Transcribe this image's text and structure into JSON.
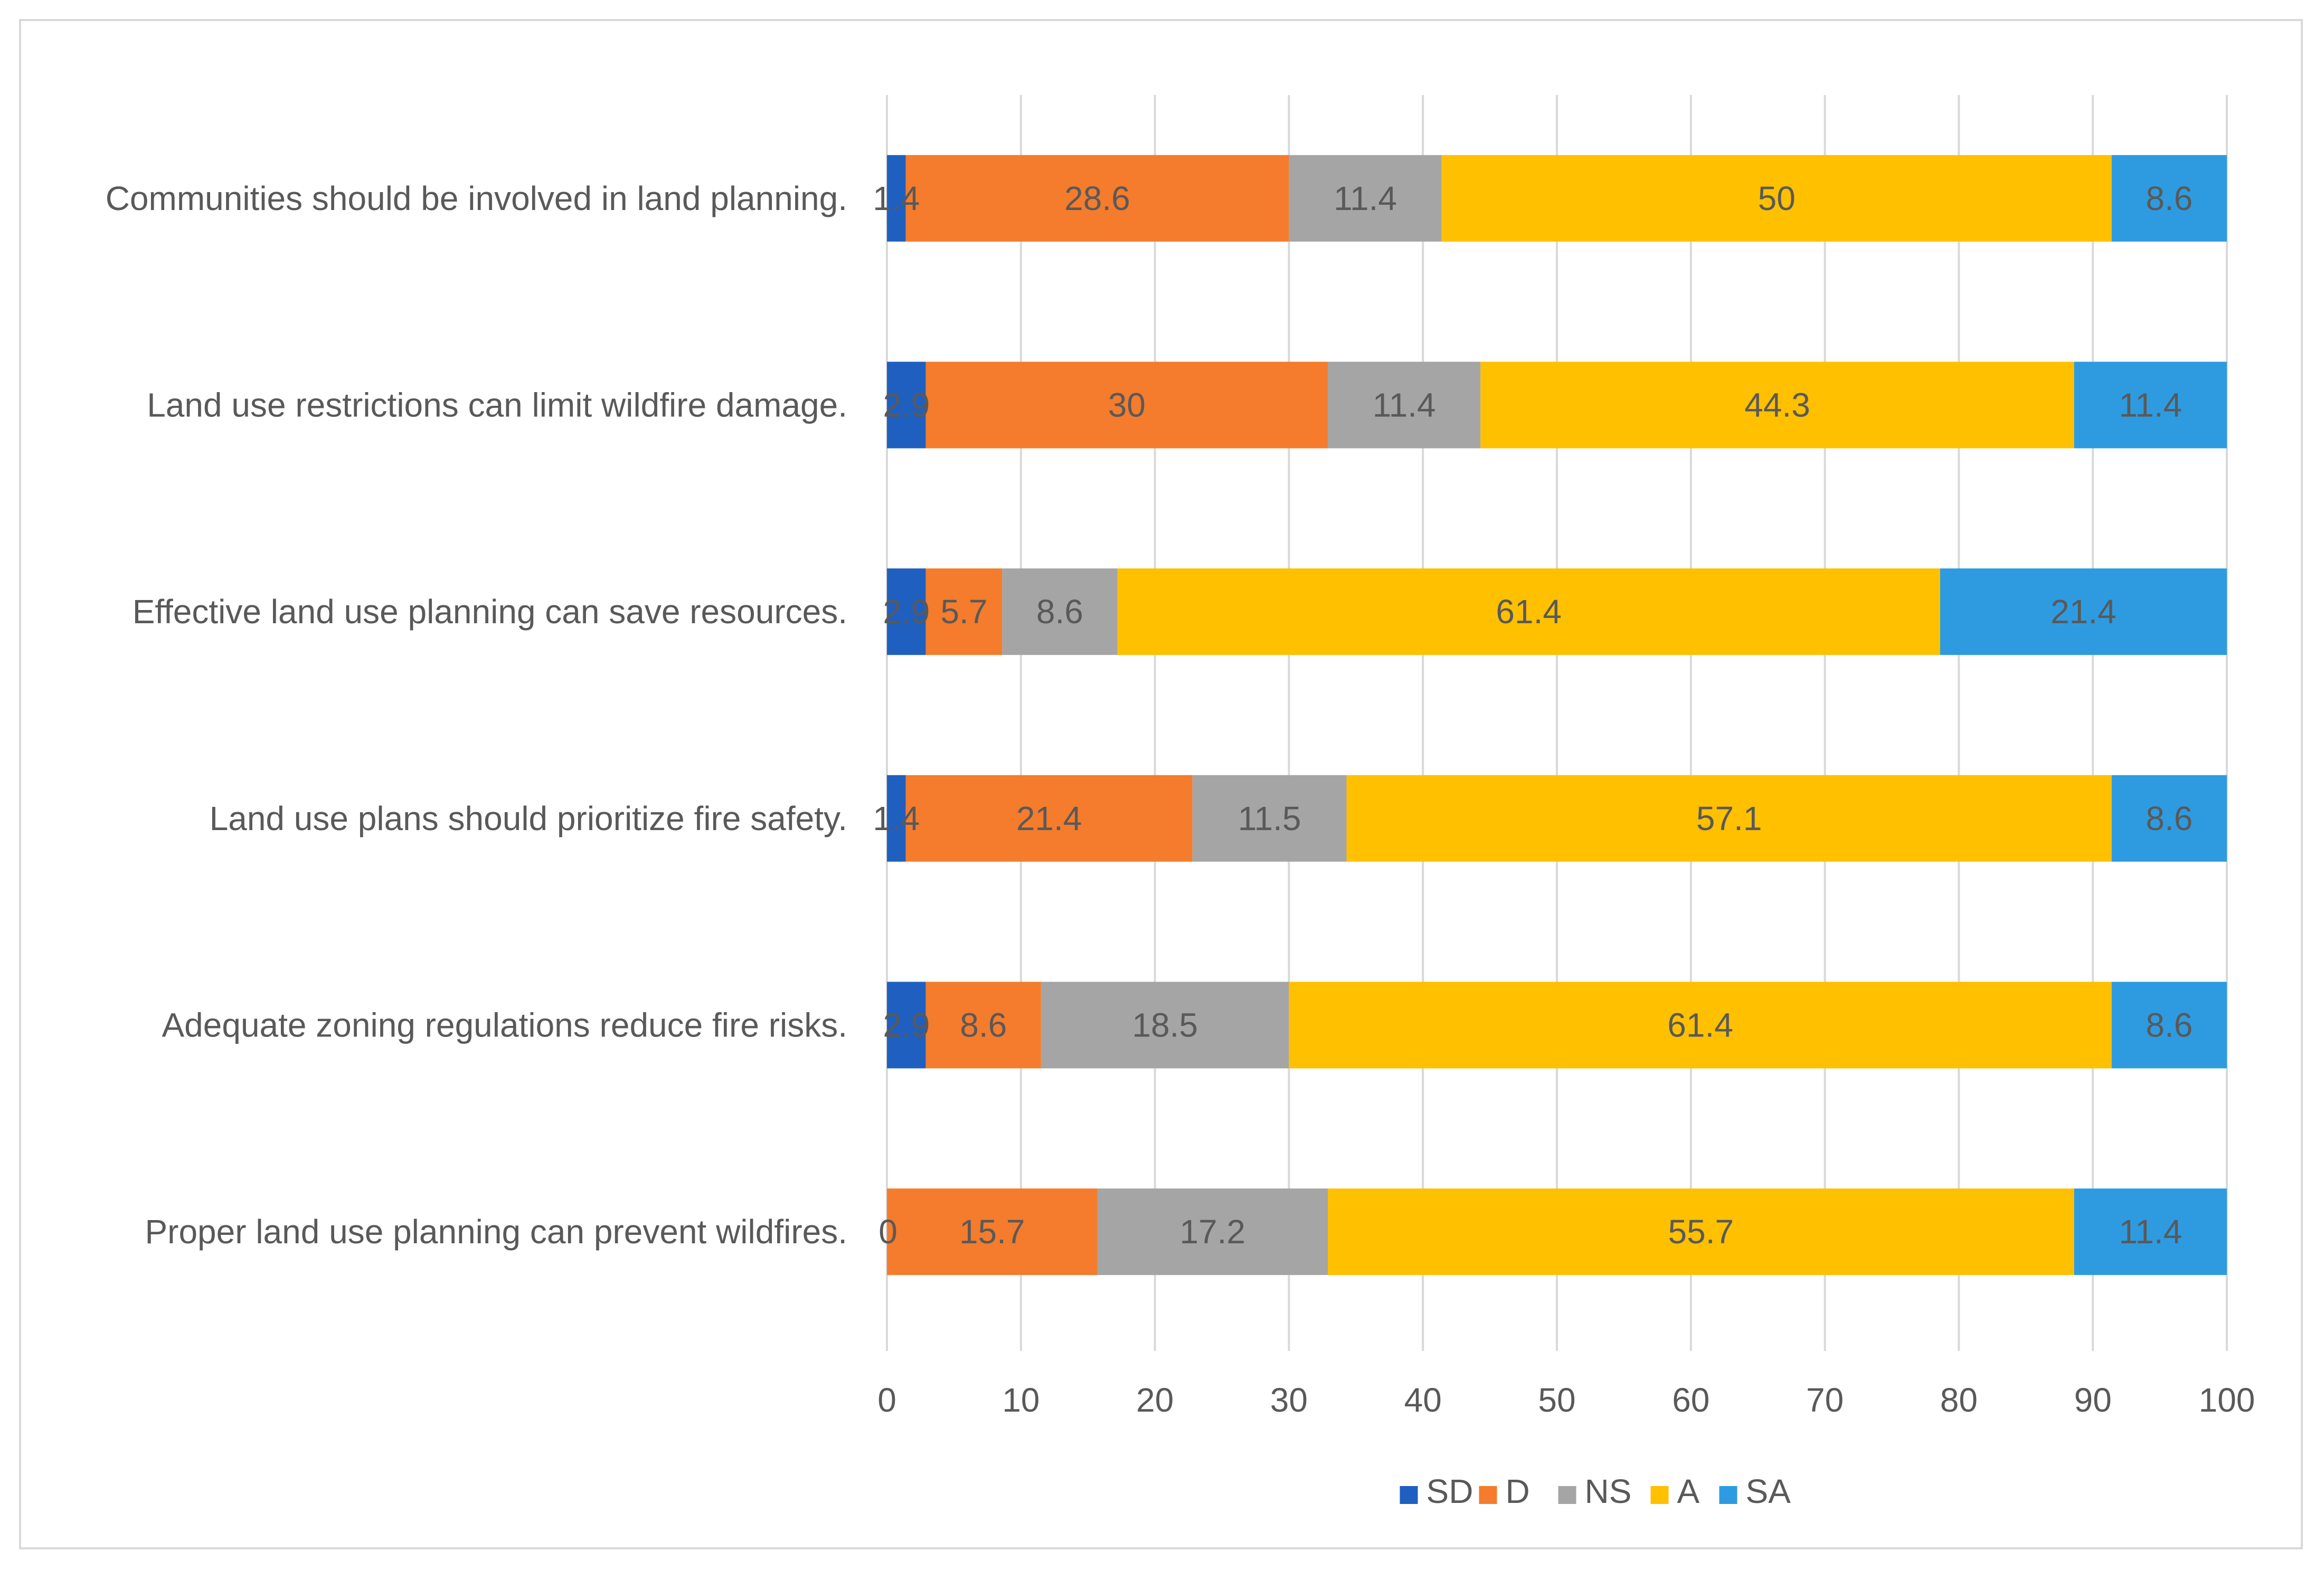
{
  "chart_data": {
    "type": "bar",
    "orientation": "horizontal",
    "stacked": true,
    "title": "",
    "xlabel": "",
    "ylabel": "",
    "xlim": [
      0,
      100
    ],
    "ticks": [
      "0",
      "10",
      "20",
      "30",
      "40",
      "50",
      "60",
      "70",
      "80",
      "90",
      "100"
    ],
    "grid": true,
    "legend_position": "bottom",
    "categories": [
      "Communities should be involved in land planning.",
      "Land use restrictions can limit wildfire damage.",
      "Effective land use planning can save resources.",
      "Land use plans should prioritize fire safety.",
      "Adequate zoning regulations reduce fire risks.",
      "Proper land use planning can prevent wildfires."
    ],
    "series": [
      {
        "name": "SD",
        "color": "#1f5fbf",
        "values": [
          1.4,
          2.9,
          2.9,
          1.4,
          2.9,
          0
        ],
        "labels": [
          "1.4",
          "2.9",
          "2.9",
          "1.4",
          "2.9",
          "0"
        ]
      },
      {
        "name": "D",
        "color": "#f47c2c",
        "values": [
          28.6,
          30,
          5.7,
          21.4,
          8.6,
          15.7
        ],
        "labels": [
          "28.6",
          "30",
          "5.7",
          "21.4",
          "8.6",
          "15.7"
        ]
      },
      {
        "name": "NS",
        "color": "#a5a5a5",
        "values": [
          11.4,
          11.4,
          8.6,
          11.5,
          18.5,
          17.2
        ],
        "labels": [
          "11.4",
          "11.4",
          "8.6",
          "11.5",
          "18.5",
          "17.2"
        ]
      },
      {
        "name": "A",
        "color": "#ffc000",
        "values": [
          50,
          44.3,
          61.4,
          57.1,
          61.4,
          55.7
        ],
        "labels": [
          "50",
          "44.3",
          "61.4",
          "57.1",
          "61.4",
          "55.7"
        ]
      },
      {
        "name": "SA",
        "color": "#2e9be0",
        "values": [
          8.6,
          11.4,
          21.4,
          8.6,
          8.6,
          11.4
        ],
        "labels": [
          "8.6",
          "11.4",
          "21.4",
          "8.6",
          "8.6",
          "11.4"
        ]
      }
    ]
  }
}
